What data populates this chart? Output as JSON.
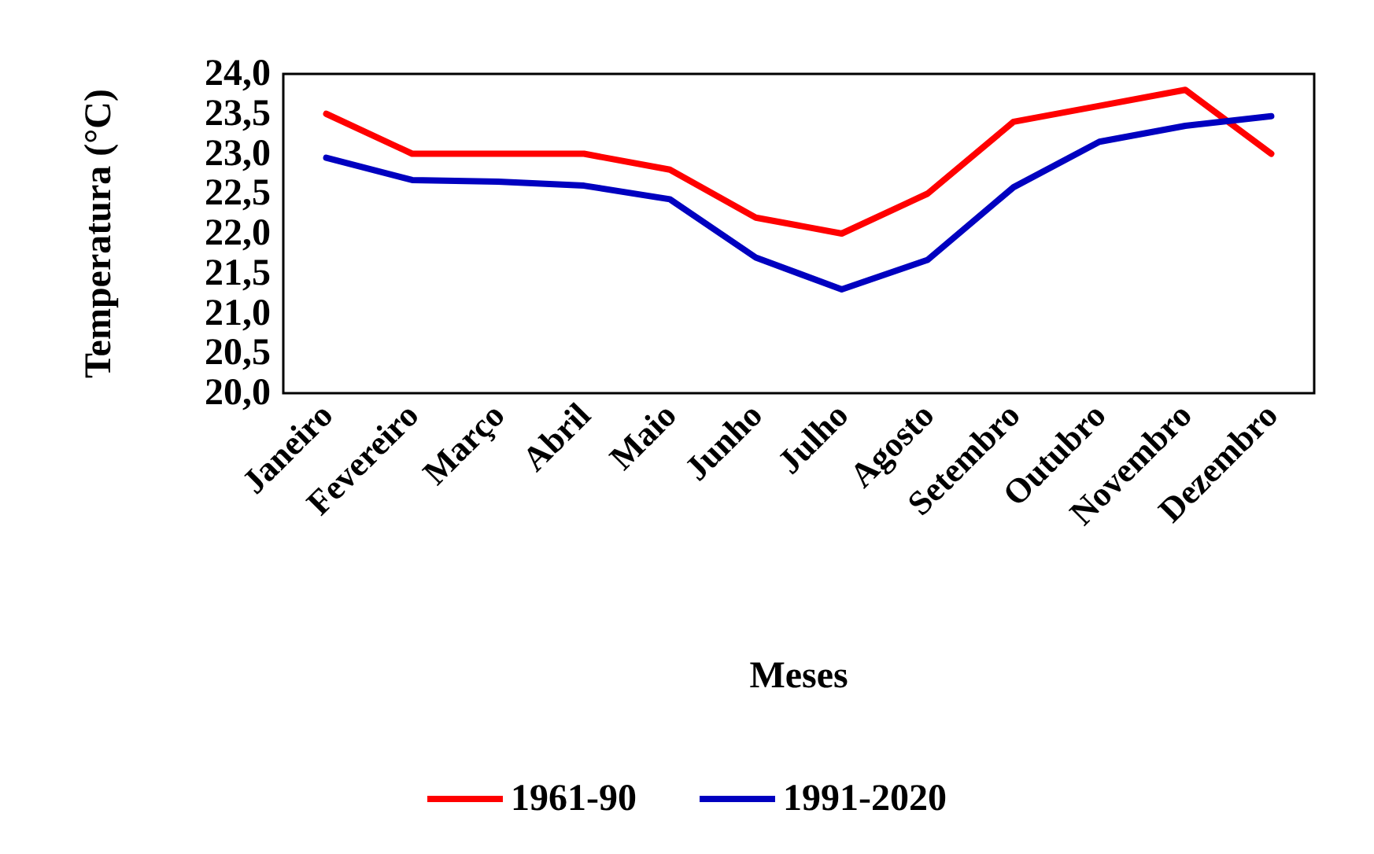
{
  "chart_data": {
    "type": "line",
    "xlabel": "Meses",
    "ylabel": "Temperatura (°C)",
    "categories": [
      "Janeiro",
      "Fevereiro",
      "Março",
      "Abril",
      "Maio",
      "Junho",
      "Julho",
      "Agosto",
      "Setembro",
      "Outubro",
      "Novembro",
      "Dezembro"
    ],
    "series": [
      {
        "name": "1961-90",
        "color": "#ff0000",
        "values": [
          23.5,
          23.0,
          23.0,
          23.0,
          22.8,
          22.2,
          22.0,
          22.5,
          23.4,
          23.6,
          23.8,
          23.0
        ]
      },
      {
        "name": "1991-2020",
        "color": "#0000c0",
        "values": [
          22.95,
          22.67,
          22.65,
          22.6,
          22.43,
          21.7,
          21.3,
          21.67,
          22.58,
          23.15,
          23.35,
          23.47
        ]
      }
    ],
    "ylim": [
      20,
      24
    ],
    "yticks": [
      {
        "value": 20,
        "label": "20,0"
      },
      {
        "value": 20.5,
        "label": "20,5"
      },
      {
        "value": 21,
        "label": "21,0"
      },
      {
        "value": 21.5,
        "label": "21,5"
      },
      {
        "value": 22,
        "label": "22,0"
      },
      {
        "value": 22.5,
        "label": "22,5"
      },
      {
        "value": 23,
        "label": "23,0"
      },
      {
        "value": 23.5,
        "label": "23,5"
      },
      {
        "value": 24,
        "label": "24,0"
      }
    ],
    "grid": false,
    "legend": "bottom",
    "marker": "none",
    "line_style": "solid"
  }
}
